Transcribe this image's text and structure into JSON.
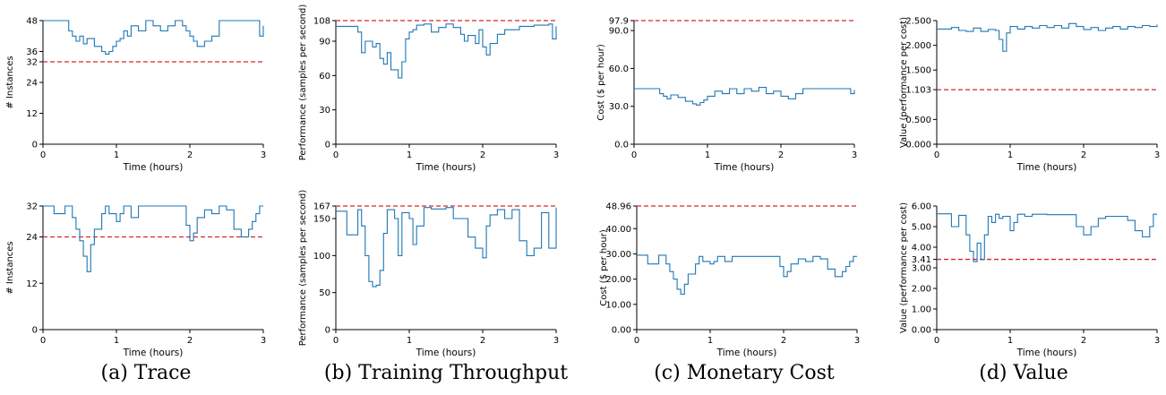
{
  "colors": {
    "line": "#1f77b4",
    "ref": "#d62728",
    "axis": "#000000"
  },
  "captions": [
    "(a) Trace",
    "(b) Training Throughput",
    "(c) Monetary Cost",
    "(d) Value"
  ],
  "chart_data": [
    {
      "type": "line",
      "title": "",
      "xlabel": "Time (hours)",
      "ylabel": "# Instances",
      "xlim": [
        0,
        3
      ],
      "ylim": [
        0,
        48
      ],
      "xticks": [
        "0",
        "1",
        "2",
        "3"
      ],
      "yticks": [
        "0",
        "12",
        "24",
        "32",
        "36",
        "48"
      ],
      "ref_line": 32,
      "x": [
        0,
        0.35,
        0.4,
        0.45,
        0.5,
        0.55,
        0.6,
        0.7,
        0.8,
        0.85,
        0.9,
        0.95,
        1.0,
        1.05,
        1.1,
        1.15,
        1.2,
        1.3,
        1.4,
        1.5,
        1.6,
        1.7,
        1.8,
        1.9,
        1.95,
        2.0,
        2.05,
        2.1,
        2.2,
        2.3,
        2.4,
        2.5,
        2.6,
        2.7,
        2.8,
        2.9,
        2.95,
        3.0
      ],
      "series": [
        {
          "values": [
            48,
            44,
            42,
            40,
            42,
            39,
            41,
            38,
            36,
            35,
            36,
            38,
            40,
            41,
            44,
            42,
            46,
            44,
            48,
            46,
            44,
            46,
            48,
            46,
            44,
            42,
            40,
            38,
            40,
            42,
            48,
            48,
            48,
            48,
            48,
            48,
            42,
            46
          ]
        }
      ]
    },
    {
      "type": "line",
      "title": "",
      "xlabel": "Time (hours)",
      "ylabel": "Performance (samples per second)",
      "xlim": [
        0,
        3
      ],
      "ylim": [
        0,
        108
      ],
      "xticks": [
        "0",
        "1",
        "2",
        "3"
      ],
      "yticks": [
        "0",
        "30",
        "60",
        "90",
        "108"
      ],
      "ref_line": 108,
      "x": [
        0,
        0.3,
        0.35,
        0.4,
        0.5,
        0.55,
        0.6,
        0.65,
        0.7,
        0.75,
        0.85,
        0.9,
        0.95,
        1.0,
        1.05,
        1.1,
        1.2,
        1.3,
        1.4,
        1.5,
        1.6,
        1.7,
        1.75,
        1.8,
        1.9,
        1.95,
        2.0,
        2.05,
        2.1,
        2.2,
        2.3,
        2.5,
        2.7,
        2.9,
        2.95,
        3.0
      ],
      "series": [
        {
          "values": [
            103,
            98,
            80,
            90,
            85,
            88,
            75,
            70,
            80,
            65,
            58,
            72,
            92,
            98,
            100,
            104,
            105,
            98,
            102,
            105,
            102,
            96,
            90,
            95,
            88,
            100,
            85,
            78,
            88,
            96,
            100,
            103,
            104,
            105,
            92,
            103
          ]
        }
      ]
    },
    {
      "type": "line",
      "title": "",
      "xlabel": "Time (hours)",
      "ylabel": "Cost ($ per hour)",
      "xlim": [
        0,
        3
      ],
      "ylim": [
        0,
        97.9
      ],
      "xticks": [
        "0",
        "1",
        "2",
        "3"
      ],
      "yticks": [
        "0.0",
        "30.0",
        "60.0",
        "90.0",
        "97.9"
      ],
      "ref_line": 97.9,
      "x": [
        0,
        0.35,
        0.4,
        0.45,
        0.5,
        0.6,
        0.7,
        0.8,
        0.85,
        0.9,
        0.95,
        1.0,
        1.1,
        1.2,
        1.3,
        1.4,
        1.5,
        1.6,
        1.7,
        1.8,
        1.9,
        2.0,
        2.1,
        2.2,
        2.3,
        2.4,
        2.5,
        2.6,
        2.7,
        2.8,
        2.9,
        2.95,
        3.0
      ],
      "series": [
        {
          "values": [
            44,
            40,
            38,
            36,
            39,
            37,
            34,
            32,
            31,
            33,
            35,
            38,
            42,
            40,
            44,
            40,
            44,
            42,
            45,
            40,
            42,
            38,
            36,
            40,
            44,
            44,
            44,
            44,
            44,
            44,
            44,
            40,
            43
          ]
        }
      ]
    },
    {
      "type": "line",
      "title": "",
      "xlabel": "Time (hours)",
      "ylabel": "Value (performance per cost)",
      "xlim": [
        0,
        3
      ],
      "ylim": [
        0,
        2.5
      ],
      "xticks": [
        "0",
        "1",
        "2",
        "3"
      ],
      "yticks": [
        "0.000",
        "0.500",
        "1.103",
        "1.500",
        "2.000",
        "2.500"
      ],
      "ref_line": 1.103,
      "x": [
        0,
        0.2,
        0.3,
        0.4,
        0.5,
        0.6,
        0.7,
        0.8,
        0.85,
        0.9,
        0.95,
        1.0,
        1.1,
        1.2,
        1.3,
        1.4,
        1.5,
        1.6,
        1.7,
        1.8,
        1.9,
        2.0,
        2.1,
        2.2,
        2.3,
        2.4,
        2.5,
        2.6,
        2.7,
        2.8,
        2.9,
        3.0
      ],
      "series": [
        {
          "values": [
            2.33,
            2.36,
            2.3,
            2.28,
            2.35,
            2.28,
            2.32,
            2.3,
            2.12,
            1.88,
            2.25,
            2.38,
            2.33,
            2.38,
            2.35,
            2.4,
            2.36,
            2.4,
            2.35,
            2.44,
            2.38,
            2.32,
            2.36,
            2.3,
            2.35,
            2.38,
            2.33,
            2.38,
            2.36,
            2.4,
            2.38,
            2.42
          ]
        }
      ]
    },
    {
      "type": "line",
      "title": "",
      "xlabel": "Time (hours)",
      "ylabel": "# Instances",
      "xlim": [
        0,
        3
      ],
      "ylim": [
        0,
        32
      ],
      "xticks": [
        "0",
        "1",
        "2",
        "3"
      ],
      "yticks": [
        "0",
        "12",
        "24",
        "32"
      ],
      "ref_line": 24,
      "x": [
        0,
        0.15,
        0.3,
        0.4,
        0.45,
        0.5,
        0.55,
        0.6,
        0.65,
        0.7,
        0.8,
        0.85,
        0.9,
        1.0,
        1.05,
        1.1,
        1.2,
        1.3,
        1.5,
        1.6,
        1.8,
        1.95,
        2.0,
        2.05,
        2.1,
        2.2,
        2.3,
        2.4,
        2.5,
        2.6,
        2.7,
        2.8,
        2.85,
        2.9,
        2.95,
        3.0
      ],
      "series": [
        {
          "values": [
            32,
            30,
            32,
            29,
            26,
            23,
            19,
            15,
            22,
            26,
            30,
            32,
            30,
            28,
            30,
            32,
            29,
            32,
            32,
            32,
            32,
            27,
            23,
            25,
            29,
            31,
            30,
            32,
            31,
            26,
            24,
            26,
            28,
            30,
            32,
            32
          ]
        }
      ]
    },
    {
      "type": "line",
      "title": "",
      "xlabel": "Time (hours)",
      "ylabel": "Performance (samples per second)",
      "xlim": [
        0,
        3
      ],
      "ylim": [
        0,
        167
      ],
      "xticks": [
        "0",
        "1",
        "2",
        "3"
      ],
      "yticks": [
        "0",
        "50",
        "100",
        "150",
        "167"
      ],
      "ref_line": 167,
      "x": [
        0,
        0.15,
        0.3,
        0.35,
        0.4,
        0.45,
        0.5,
        0.55,
        0.6,
        0.65,
        0.7,
        0.8,
        0.85,
        0.9,
        1.0,
        1.05,
        1.1,
        1.2,
        1.3,
        1.5,
        1.6,
        1.8,
        1.9,
        2.0,
        2.05,
        2.1,
        2.2,
        2.3,
        2.4,
        2.5,
        2.6,
        2.7,
        2.8,
        2.9,
        3.0
      ],
      "series": [
        {
          "values": [
            160,
            128,
            162,
            140,
            100,
            65,
            58,
            60,
            80,
            130,
            162,
            150,
            100,
            158,
            150,
            115,
            140,
            165,
            163,
            165,
            150,
            125,
            110,
            97,
            140,
            155,
            162,
            150,
            162,
            120,
            100,
            110,
            158,
            110,
            165
          ]
        }
      ]
    },
    {
      "type": "line",
      "title": "",
      "xlabel": "Time (hours)",
      "ylabel": "Cost ($ per hour)",
      "xlim": [
        0,
        3
      ],
      "ylim": [
        0,
        48.96
      ],
      "xticks": [
        "0",
        "1",
        "2",
        "3"
      ],
      "yticks": [
        "0.00",
        "10.00",
        "20.00",
        "30.00",
        "40.00",
        "48.96"
      ],
      "ref_line": 48.96,
      "x": [
        0,
        0.15,
        0.3,
        0.4,
        0.45,
        0.5,
        0.55,
        0.6,
        0.65,
        0.7,
        0.8,
        0.85,
        0.9,
        1.0,
        1.05,
        1.1,
        1.2,
        1.3,
        1.5,
        1.6,
        1.8,
        1.95,
        2.0,
        2.05,
        2.1,
        2.2,
        2.3,
        2.4,
        2.5,
        2.6,
        2.7,
        2.8,
        2.85,
        2.9,
        2.95,
        3.0
      ],
      "series": [
        {
          "values": [
            29.5,
            26,
            29.5,
            26,
            23,
            20,
            16,
            14,
            18,
            22,
            26,
            29,
            27,
            26,
            27,
            29,
            27,
            29,
            29,
            29,
            29,
            25,
            21,
            23,
            26,
            28,
            27,
            29,
            28,
            24,
            21,
            23,
            25,
            27,
            29,
            29
          ]
        }
      ]
    },
    {
      "type": "line",
      "title": "",
      "xlabel": "Time (hours)",
      "ylabel": "Value (performance per cost)",
      "xlim": [
        0,
        3
      ],
      "ylim": [
        0,
        6
      ],
      "xticks": [
        "0",
        "1",
        "2",
        "3"
      ],
      "yticks": [
        "0.00",
        "1.00",
        "2.00",
        "3.00",
        "3.41",
        "4.00",
        "5.00",
        "6.00"
      ],
      "ref_line": 3.41,
      "x": [
        0,
        0.2,
        0.3,
        0.4,
        0.45,
        0.5,
        0.55,
        0.6,
        0.65,
        0.7,
        0.75,
        0.8,
        0.85,
        0.9,
        1.0,
        1.05,
        1.1,
        1.2,
        1.3,
        1.5,
        1.8,
        1.9,
        2.0,
        2.1,
        2.2,
        2.3,
        2.5,
        2.6,
        2.7,
        2.8,
        2.9,
        2.95,
        3.0
      ],
      "series": [
        {
          "values": [
            5.62,
            5.0,
            5.55,
            4.6,
            3.8,
            3.3,
            4.2,
            3.4,
            4.6,
            5.5,
            5.2,
            5.6,
            5.4,
            5.5,
            4.8,
            5.2,
            5.6,
            5.5,
            5.6,
            5.58,
            5.58,
            5.0,
            4.6,
            5.0,
            5.4,
            5.5,
            5.5,
            5.3,
            4.8,
            4.5,
            5.0,
            5.6,
            5.6
          ]
        }
      ]
    }
  ]
}
